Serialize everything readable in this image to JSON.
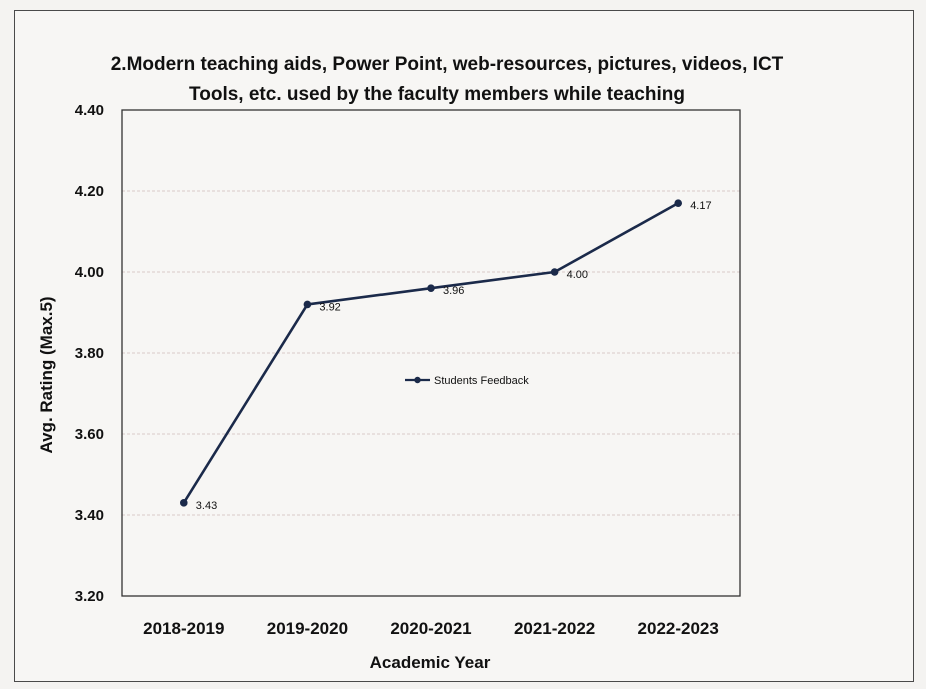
{
  "chart_data": {
    "type": "line",
    "title_lines": [
      "2.Modern teaching aids, Power Point, web-resources, pictures, videos, ICT",
      "Tools, etc. used by the faculty members while teaching"
    ],
    "xlabel": "Academic Year",
    "ylabel": "Avg. Rating (Max.5)",
    "categories": [
      "2018-2019",
      "2019-2020",
      "2020-2021",
      "2021-2022",
      "2022-2023"
    ],
    "ylim": [
      3.2,
      4.4
    ],
    "yticks": [
      "3.20",
      "3.40",
      "3.60",
      "3.80",
      "4.00",
      "4.20",
      "4.40"
    ],
    "grid": true,
    "legend_position": "center",
    "series": [
      {
        "name": "Students Feedback",
        "values": [
          3.43,
          3.92,
          3.96,
          4.0,
          4.17
        ],
        "data_labels": [
          "3.43",
          "3.92",
          "3.96",
          "4.00",
          "4.17"
        ],
        "color": "#1b2a4a"
      }
    ]
  }
}
